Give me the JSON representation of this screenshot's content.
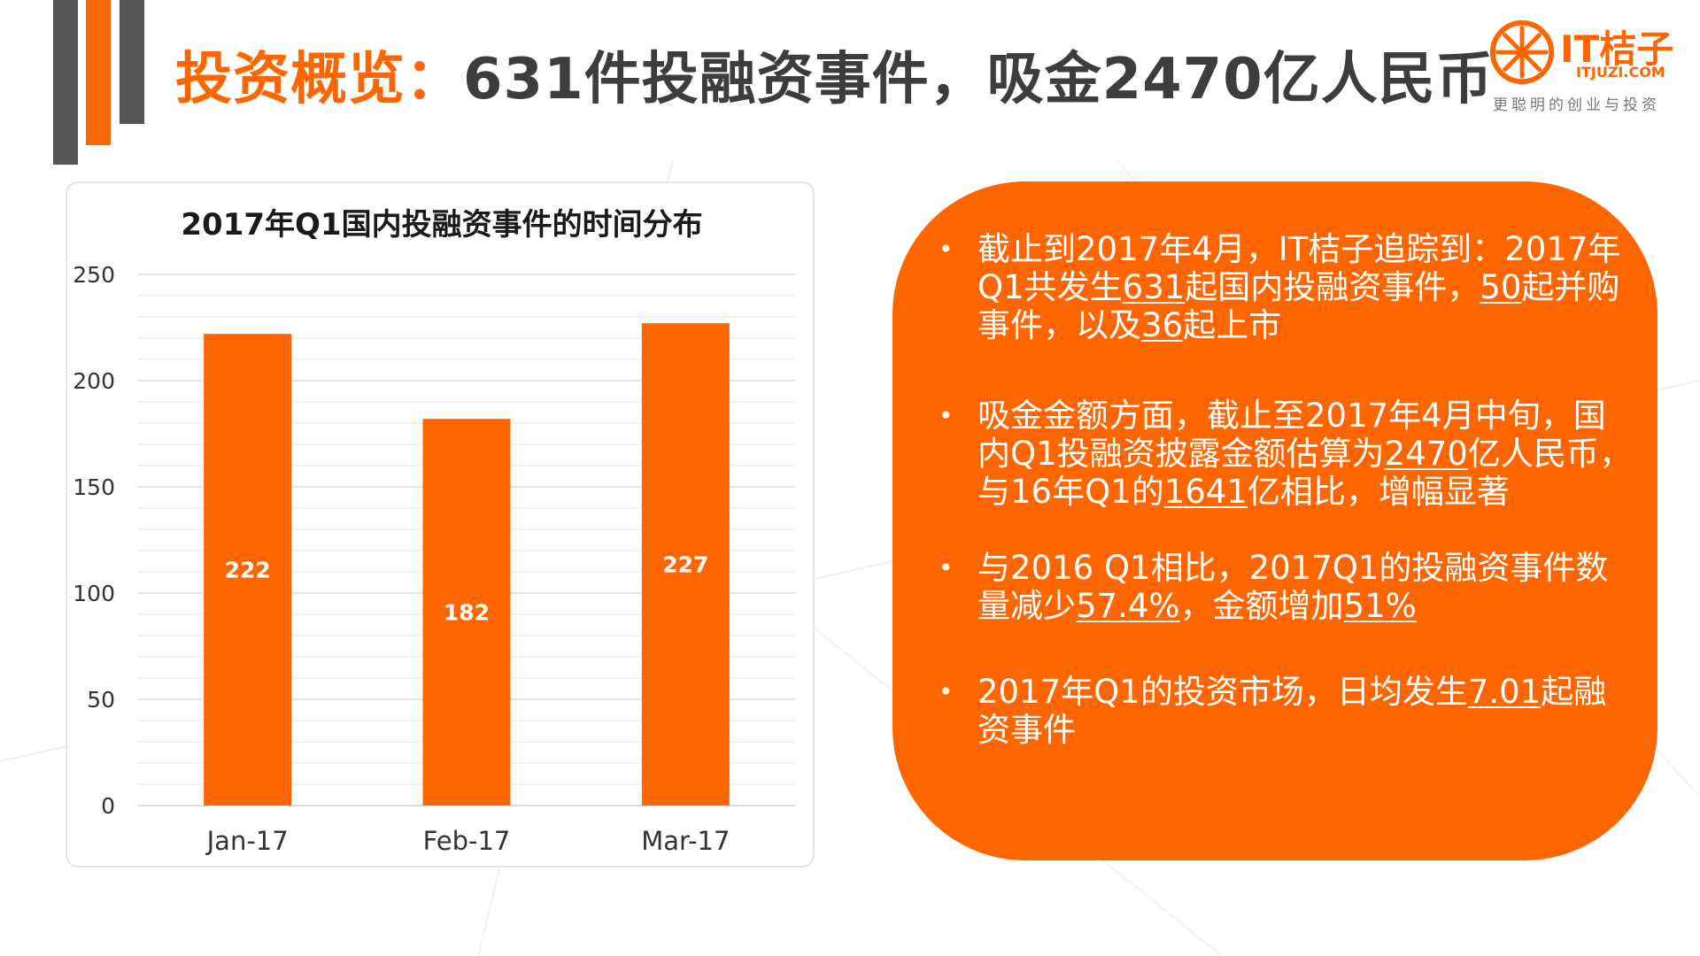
{
  "header": {
    "title_prefix": "投资概览：",
    "title_main": "631件投融资事件，吸金2470亿人民币"
  },
  "logo": {
    "name": "IT桔子",
    "domain": "ITJUZI.COM",
    "slogan": "更聪明的创业与投资"
  },
  "colors": {
    "accent": "#ff6600",
    "dark": "#555555"
  },
  "chart_data": {
    "type": "bar",
    "title": "2017年Q1国内投融资事件的时间分布",
    "categories": [
      "Jan-17",
      "Feb-17",
      "Mar-17"
    ],
    "values": [
      222,
      182,
      227
    ],
    "data_labels": [
      "222",
      "182",
      "227"
    ],
    "ylim": [
      0,
      250
    ],
    "yticks": [
      0,
      50,
      100,
      150,
      200,
      250
    ],
    "grid": true,
    "bar_color": "#ff6600"
  },
  "bullets": [
    {
      "parts": [
        {
          "t": "截止到2017年4月，IT桔子追踪到：2017年Q1共发生"
        },
        {
          "t": "631",
          "u": true
        },
        {
          "t": "起国内投融资事件，"
        },
        {
          "t": "50",
          "u": true
        },
        {
          "t": "起并购事件，以及"
        },
        {
          "t": "36",
          "u": true
        },
        {
          "t": "起上市"
        }
      ]
    },
    {
      "parts": [
        {
          "t": "吸金金额方面，截止至2017年4月中旬，国内Q1投融资披露金额估算为"
        },
        {
          "t": "2470",
          "u": true
        },
        {
          "t": "亿人民币，与16年Q1的"
        },
        {
          "t": "1641",
          "u": true
        },
        {
          "t": "亿相比，增幅显著"
        }
      ]
    },
    {
      "parts": [
        {
          "t": "与2016 Q1相比，2017Q1的投融资事件数量减少"
        },
        {
          "t": "57.4%",
          "u": true
        },
        {
          "t": "，金额增加"
        },
        {
          "t": "51%",
          "u": true
        }
      ]
    },
    {
      "parts": [
        {
          "t": "2017年Q1的投资市场，日均发生"
        },
        {
          "t": "7.01",
          "u": true
        },
        {
          "t": "起融资事件"
        }
      ]
    }
  ],
  "bullet_symbol": "•"
}
